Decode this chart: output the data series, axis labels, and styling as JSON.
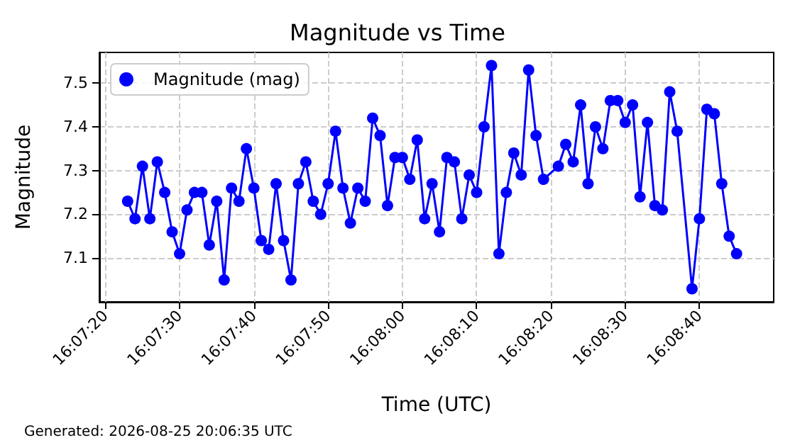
{
  "chart_data": {
    "type": "line",
    "title": "Magnitude vs Time",
    "xlabel": "Time (UTC)",
    "ylabel": "Magnitude",
    "annotations": [
      "Generated: 2026-08-25 20:06:35 UTC"
    ],
    "x": [
      16.123056,
      16.123333,
      16.123611,
      16.123889,
      16.124167,
      16.124444,
      16.124722,
      16.125,
      16.125278,
      16.125556,
      16.125833,
      16.126111,
      16.126389,
      16.126667,
      16.126944,
      16.127222,
      16.1275,
      16.127778,
      16.128056,
      16.128333,
      16.128611,
      16.128889,
      16.129167,
      16.129444,
      16.129722,
      16.13,
      16.130278,
      16.130556,
      16.130833,
      16.131111,
      16.131389,
      16.131667,
      16.131944,
      16.132222,
      16.1325,
      16.132778,
      16.133056,
      16.133333,
      16.133611,
      16.133889,
      16.134167,
      16.134444,
      16.134722,
      16.135,
      16.135278,
      16.135556,
      16.135833,
      16.136111,
      16.136389,
      16.136667,
      16.136944,
      16.137222,
      16.1375,
      16.137778,
      16.138056,
      16.138333,
      16.138611,
      16.139167,
      16.139444,
      16.139722,
      16.14,
      16.140278,
      16.140556,
      16.140833,
      16.141111,
      16.141389,
      16.141667,
      16.141944,
      16.142222,
      16.1425,
      16.142778,
      16.143056,
      16.143333,
      16.143611,
      16.144167,
      16.144444,
      16.144722,
      16.145,
      16.145278,
      16.145556,
      16.145833
    ],
    "series": [
      {
        "name": "Magnitude (mag)",
        "color": "#0000ff",
        "values": [
          7.23,
          7.19,
          7.31,
          7.19,
          7.32,
          7.25,
          7.16,
          7.11,
          7.21,
          7.25,
          7.25,
          7.13,
          7.23,
          7.05,
          7.26,
          7.23,
          7.35,
          7.26,
          7.14,
          7.12,
          7.27,
          7.14,
          7.05,
          7.27,
          7.32,
          7.23,
          7.2,
          7.27,
          7.39,
          7.26,
          7.18,
          7.26,
          7.23,
          7.42,
          7.38,
          7.22,
          7.33,
          7.33,
          7.28,
          7.37,
          7.19,
          7.27,
          7.16,
          7.33,
          7.32,
          7.19,
          7.29,
          7.25,
          7.4,
          7.54,
          7.11,
          7.25,
          7.34,
          7.29,
          7.53,
          7.38,
          7.28,
          7.31,
          7.36,
          7.32,
          7.45,
          7.27,
          7.4,
          7.35,
          7.46,
          7.46,
          7.41,
          7.45,
          7.24,
          7.41,
          7.22,
          7.21,
          7.48,
          7.39,
          7.03,
          7.19,
          7.44,
          7.43,
          7.27,
          7.15,
          7.11
        ]
      }
    ],
    "xlim": [
      16.122,
      16.147222
    ],
    "xticks": [
      {
        "value": 16.122222,
        "label": "16:07:20"
      },
      {
        "value": 16.125,
        "label": "16:07:30"
      },
      {
        "value": 16.127778,
        "label": "16:07:40"
      },
      {
        "value": 16.130556,
        "label": "16:07:50"
      },
      {
        "value": 16.133333,
        "label": "16:08:00"
      },
      {
        "value": 16.136111,
        "label": "16:08:10"
      },
      {
        "value": 16.138889,
        "label": "16:08:20"
      },
      {
        "value": 16.141667,
        "label": "16:08:30"
      },
      {
        "value": 16.144444,
        "label": "16:08:40"
      }
    ],
    "ylim": [
      7.0,
      7.57
    ],
    "yticks": [
      7.1,
      7.2,
      7.3,
      7.4,
      7.5
    ],
    "grid": true,
    "legend": "top left",
    "marker": "circle",
    "line_style": "solid"
  }
}
